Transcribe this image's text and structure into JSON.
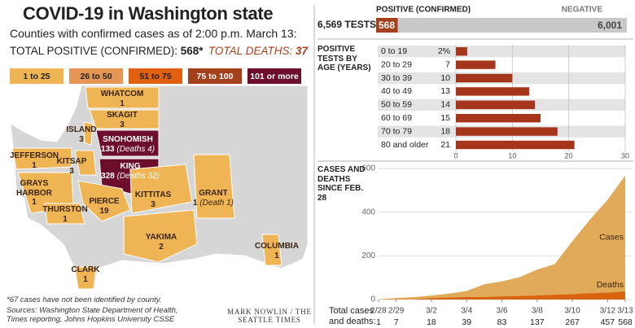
{
  "header": {
    "title": "COVID-19 in Washington state",
    "subtitle": "Counties with confirmed cases as of 2:00 p.m. March 13:",
    "total_positive_label": "TOTAL POSITIVE (CONFIRMED):",
    "total_positive": "568*",
    "total_deaths_label": "TOTAL DEATHS:",
    "total_deaths": 37
  },
  "legend": [
    {
      "label": "1 to 25",
      "color": "#efb453"
    },
    {
      "label": "26 to 50",
      "color": "#e59655"
    },
    {
      "label": "51 to 75",
      "color": "#e1600f"
    },
    {
      "label": "75 to 100",
      "color": "#a5401d"
    },
    {
      "label": "101 or more",
      "color": "#6d0e2c"
    }
  ],
  "map": {
    "counties": [
      {
        "name": "WHATCOM",
        "cases": 1,
        "color": "#efb453"
      },
      {
        "name": "SKAGIT",
        "cases": 3,
        "color": "#efb453"
      },
      {
        "name": "ISLAND",
        "cases": 3,
        "color": "#efb453"
      },
      {
        "name": "SNOHOMISH",
        "cases": 133,
        "note": "(Deaths 4)",
        "color": "#6d0e2c"
      },
      {
        "name": "KITSAP",
        "cases": 3,
        "color": "#efb453"
      },
      {
        "name": "KING",
        "cases": 328,
        "note": "(Deaths 32)",
        "color": "#6d0e2c"
      },
      {
        "name": "JEFFERSON",
        "cases": 1,
        "color": "#efb453"
      },
      {
        "name": "GRAYS HARBOR",
        "cases": 1,
        "color": "#efb453"
      },
      {
        "name": "PIERCE",
        "cases": 19,
        "color": "#efb453"
      },
      {
        "name": "THURSTON",
        "cases": 1,
        "color": "#efb453"
      },
      {
        "name": "KITTITAS",
        "cases": 3,
        "color": "#efb453"
      },
      {
        "name": "GRANT",
        "cases": 1,
        "note": "(Death 1)",
        "color": "#efb453"
      },
      {
        "name": "YAKIMA",
        "cases": 2,
        "color": "#efb453"
      },
      {
        "name": "COLUMBIA",
        "cases": 1,
        "color": "#efb453"
      },
      {
        "name": "CLARK",
        "cases": 1,
        "color": "#efb453"
      }
    ]
  },
  "chart_data": [
    {
      "type": "stacked-bar",
      "title": "6,569 TESTS",
      "series": [
        {
          "name": "POSITIVE (CONFIRMED)",
          "color": "#a5401d",
          "values": [
            568
          ]
        },
        {
          "name": "NEGATIVE",
          "color": "#c9c9c9",
          "values": [
            6001
          ],
          "value_labels": [
            "6,001"
          ]
        }
      ]
    },
    {
      "type": "hbar",
      "title": "POSITIVE TESTS BY AGE (YEARS)",
      "categories": [
        "0 to 19",
        "20 to 29",
        "30 to 39",
        "40 to 49",
        "50 to 59",
        "60 to 69",
        "70 to 79",
        "80 and older"
      ],
      "values": [
        2,
        7,
        10,
        13,
        14,
        15,
        18,
        21
      ],
      "value_labels": [
        "2%",
        "7",
        "10",
        "13",
        "14",
        "15",
        "18",
        "21"
      ],
      "color": "#a5361c",
      "xlim": [
        0,
        30
      ],
      "xticks": [
        0,
        10,
        20,
        30
      ],
      "grid": true
    },
    {
      "type": "area",
      "title": "CASES AND DEATHS SINCE FEB. 28",
      "table_label": "Total cases and deaths:",
      "categories": [
        "2/28",
        "2/29",
        null,
        "3/2",
        null,
        "3/4",
        null,
        "3/6",
        null,
        "3/8",
        null,
        "3/10",
        null,
        "3/12",
        "3/13"
      ],
      "series": [
        {
          "name": "Cases",
          "color": "#dfa54f",
          "values": [
            1,
            7,
            11,
            18,
            27,
            39,
            70,
            83,
            102,
            137,
            162,
            267,
            366,
            457,
            568
          ]
        },
        {
          "name": "Deaths",
          "color": "#d7600d",
          "values": [
            0,
            1,
            1,
            6,
            9,
            11,
            11,
            14,
            16,
            18,
            22,
            24,
            29,
            31,
            37
          ]
        }
      ],
      "ylim": [
        0,
        600
      ],
      "yticks": [
        0,
        200,
        400,
        600
      ],
      "grid": true
    }
  ],
  "footer": {
    "note": "*67 cases have not been identified by county.",
    "sources": "Sources: Washington State Department of Health, Times reporting, Johns Hopkins University CSSE",
    "credit": "MARK NOWLIN / THE SEATTLE TIMES"
  }
}
